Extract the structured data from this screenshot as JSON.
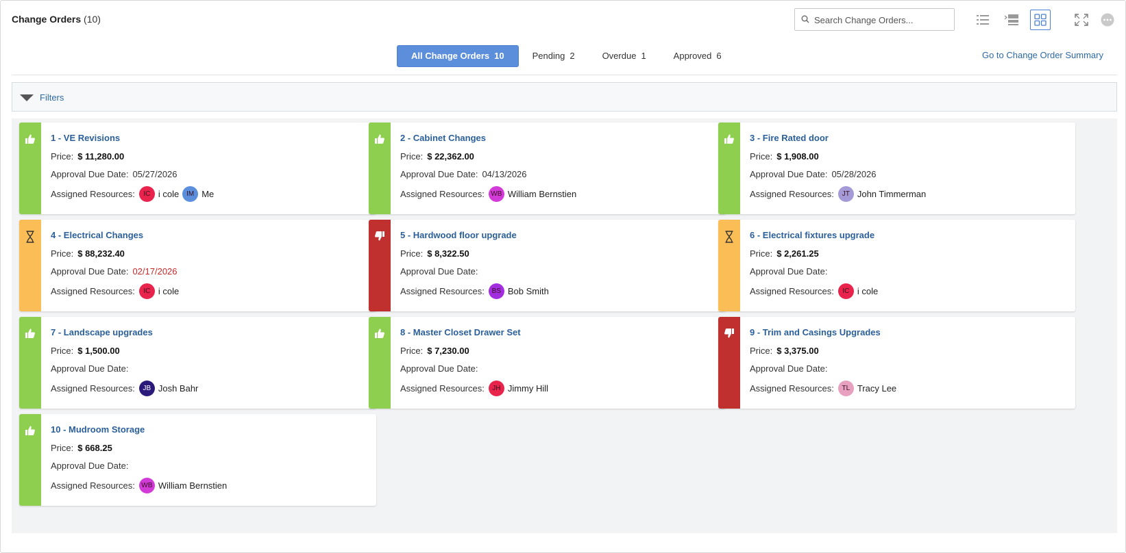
{
  "header": {
    "title": "Change Orders",
    "count": "(10)",
    "search_placeholder": "Search Change Orders...",
    "icons": [
      "list-view-icon",
      "split-view-icon",
      "grid-view-icon",
      "fullscreen-icon",
      "more-options-icon"
    ]
  },
  "tabs": [
    {
      "label": "All Change Orders",
      "count": "10",
      "active": true
    },
    {
      "label": "Pending",
      "count": "2",
      "active": false
    },
    {
      "label": "Overdue",
      "count": "1",
      "active": false
    },
    {
      "label": "Approved",
      "count": "6",
      "active": false
    }
  ],
  "summary_link": "Go to Change Order Summary",
  "filters_label": "Filters",
  "labels": {
    "price": "Price:",
    "due": "Approval Due Date:",
    "resources": "Assigned Resources:"
  },
  "colors": {
    "approved": "#8fcf4f",
    "pending": "#fbbd55",
    "rejected": "#c0302e",
    "accent": "#5b8fdc",
    "link": "#2a5f9a"
  },
  "cards": [
    {
      "name": "1 - VE Revisions",
      "status": "approved",
      "icon": "thumbs-up-icon",
      "price": "$ 11,280.00",
      "due": "05/27/2026",
      "overdue": false,
      "resources": [
        {
          "initials": "IC",
          "name": "i cole",
          "color": "#e8244c"
        },
        {
          "initials": "IM",
          "name": "Me",
          "color": "#5b8fdc"
        }
      ]
    },
    {
      "name": "2 - Cabinet Changes",
      "status": "approved",
      "icon": "thumbs-up-icon",
      "price": "$ 22,362.00",
      "due": "04/13/2026",
      "overdue": false,
      "resources": [
        {
          "initials": "WB",
          "name": "William Bernstien",
          "color": "#d23bd8"
        }
      ]
    },
    {
      "name": "3 - Fire Rated door",
      "status": "approved",
      "icon": "thumbs-up-icon",
      "price": "$ 1,908.00",
      "due": "05/28/2026",
      "overdue": false,
      "resources": [
        {
          "initials": "JT",
          "name": "John Timmerman",
          "color": "#a59ad8"
        }
      ]
    },
    {
      "name": "4 - Electrical Changes",
      "status": "pending",
      "icon": "hourglass-icon",
      "price": "$ 88,232.40",
      "due": "02/17/2026",
      "overdue": true,
      "resources": [
        {
          "initials": "IC",
          "name": "i cole",
          "color": "#e8244c"
        }
      ]
    },
    {
      "name": "5 - Hardwood floor upgrade",
      "status": "rejected",
      "icon": "thumbs-down-icon",
      "price": "$ 8,322.50",
      "due": "",
      "overdue": false,
      "resources": [
        {
          "initials": "BS",
          "name": "Bob Smith",
          "color": "#a32ee0"
        }
      ]
    },
    {
      "name": "6 - Electrical fixtures upgrade",
      "status": "pending",
      "icon": "hourglass-icon",
      "price": "$ 2,261.25",
      "due": "",
      "overdue": false,
      "resources": [
        {
          "initials": "IC",
          "name": "i cole",
          "color": "#e8244c"
        }
      ]
    },
    {
      "name": "7 - Landscape upgrades",
      "status": "approved",
      "icon": "thumbs-up-icon",
      "price": "$ 1,500.00",
      "due": "",
      "overdue": false,
      "resources": [
        {
          "initials": "JB",
          "name": "Josh Bahr",
          "color": "#2b1a7a"
        }
      ]
    },
    {
      "name": "8 - Master Closet Drawer Set",
      "status": "approved",
      "icon": "thumbs-up-icon",
      "price": "$ 7,230.00",
      "due": "",
      "overdue": false,
      "resources": [
        {
          "initials": "JH",
          "name": "Jimmy Hill",
          "color": "#e8244c"
        }
      ]
    },
    {
      "name": "9 - Trim and Casings Upgrades",
      "status": "rejected",
      "icon": "thumbs-down-icon",
      "price": "$ 3,375.00",
      "due": "",
      "overdue": false,
      "resources": [
        {
          "initials": "TL",
          "name": "Tracy Lee",
          "color": "#e8a0c0"
        }
      ]
    },
    {
      "name": "10 - Mudroom Storage",
      "status": "approved",
      "icon": "thumbs-up-icon",
      "price": "$ 668.25",
      "due": "",
      "overdue": false,
      "resources": [
        {
          "initials": "WB",
          "name": "William Bernstien",
          "color": "#d23bd8"
        }
      ]
    }
  ]
}
